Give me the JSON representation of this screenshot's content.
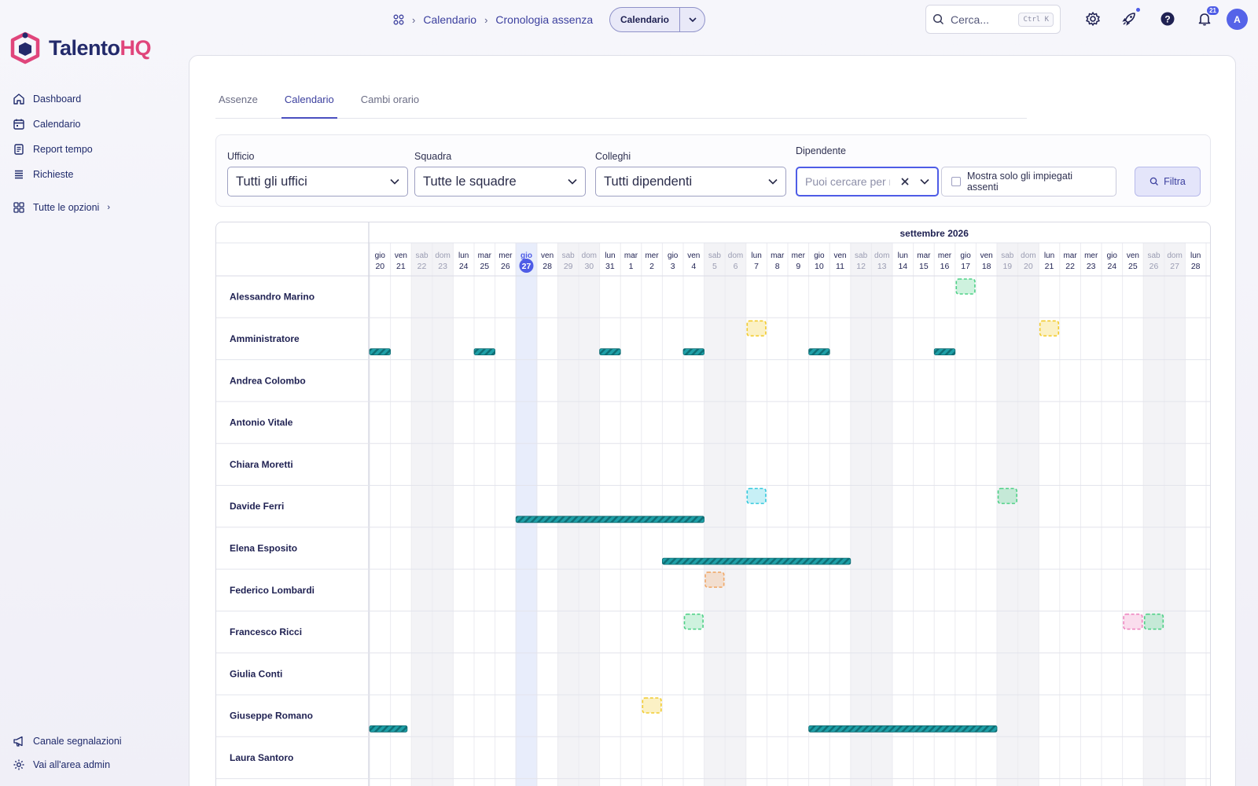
{
  "app": {
    "logo_main": "Talento",
    "logo_accent": "HQ"
  },
  "sidebar": {
    "items": [
      {
        "label": "Dashboard",
        "icon": "home-icon"
      },
      {
        "label": "Calendario",
        "icon": "calendar-icon"
      },
      {
        "label": "Report tempo",
        "icon": "report-icon"
      },
      {
        "label": "Richieste",
        "icon": "list-icon"
      },
      {
        "label": "Tutte le opzioni",
        "icon": "grid-icon"
      }
    ],
    "bottom": [
      {
        "label": "Canale segnalazioni",
        "icon": "megaphone-icon"
      },
      {
        "label": "Vai all'area admin",
        "icon": "gear-icon"
      }
    ]
  },
  "topbar": {
    "breadcrumb": [
      "Calendario",
      "Cronologia assenza"
    ],
    "view_switch": "Calendario",
    "search_placeholder": "Cerca...",
    "search_shortcut": "Ctrl K",
    "notifications_count": "21",
    "avatar_initial": "A"
  },
  "tabs": [
    "Assenze",
    "Calendario",
    "Cambi orario"
  ],
  "active_tab": "Calendario",
  "filters": {
    "office": {
      "label": "Ufficio",
      "value": "Tutti gli uffici"
    },
    "team": {
      "label": "Squadra",
      "value": "Tutte le squadre"
    },
    "colleagues": {
      "label": "Colleghi",
      "value": "Tutti dipendenti"
    },
    "employee": {
      "label": "Dipendente",
      "placeholder": "Puoi cercare per nome"
    },
    "only_absent": "Mostra solo gli impiegati assenti",
    "filter_button": "Filtra"
  },
  "calendar": {
    "month_label": "settembre 2026",
    "today_index": 7,
    "days": [
      {
        "wd": "gio",
        "d": "20"
      },
      {
        "wd": "ven",
        "d": "21"
      },
      {
        "wd": "sab",
        "d": "22",
        "we": true
      },
      {
        "wd": "dom",
        "d": "23",
        "we": true
      },
      {
        "wd": "lun",
        "d": "24"
      },
      {
        "wd": "mar",
        "d": "25"
      },
      {
        "wd": "mer",
        "d": "26"
      },
      {
        "wd": "gio",
        "d": "27"
      },
      {
        "wd": "ven",
        "d": "28"
      },
      {
        "wd": "sab",
        "d": "29",
        "we": true
      },
      {
        "wd": "dom",
        "d": "30",
        "we": true
      },
      {
        "wd": "lun",
        "d": "31"
      },
      {
        "wd": "mar",
        "d": "1"
      },
      {
        "wd": "mer",
        "d": "2"
      },
      {
        "wd": "gio",
        "d": "3"
      },
      {
        "wd": "ven",
        "d": "4"
      },
      {
        "wd": "sab",
        "d": "5",
        "we": true
      },
      {
        "wd": "dom",
        "d": "6",
        "we": true
      },
      {
        "wd": "lun",
        "d": "7"
      },
      {
        "wd": "mar",
        "d": "8"
      },
      {
        "wd": "mer",
        "d": "9"
      },
      {
        "wd": "gio",
        "d": "10"
      },
      {
        "wd": "ven",
        "d": "11"
      },
      {
        "wd": "sab",
        "d": "12",
        "we": true
      },
      {
        "wd": "dom",
        "d": "13",
        "we": true
      },
      {
        "wd": "lun",
        "d": "14"
      },
      {
        "wd": "mar",
        "d": "15"
      },
      {
        "wd": "mer",
        "d": "16"
      },
      {
        "wd": "gio",
        "d": "17"
      },
      {
        "wd": "ven",
        "d": "18"
      },
      {
        "wd": "sab",
        "d": "19",
        "we": true
      },
      {
        "wd": "dom",
        "d": "20",
        "we": true
      },
      {
        "wd": "lun",
        "d": "21"
      },
      {
        "wd": "mar",
        "d": "22"
      },
      {
        "wd": "mer",
        "d": "23"
      },
      {
        "wd": "gio",
        "d": "24"
      },
      {
        "wd": "ven",
        "d": "25"
      },
      {
        "wd": "sab",
        "d": "26",
        "we": true
      },
      {
        "wd": "dom",
        "d": "27",
        "we": true
      },
      {
        "wd": "lun",
        "d": "28"
      }
    ],
    "employees": [
      {
        "name": "Alessandro Marino",
        "events": [
          {
            "type": "box",
            "day": 28,
            "color": "green"
          }
        ]
      },
      {
        "name": "Amministratore",
        "events": [
          {
            "type": "bar",
            "from": -0.2,
            "to": 0,
            "color": "teal"
          },
          {
            "type": "bar",
            "from": 5,
            "to": 5,
            "color": "teal"
          },
          {
            "type": "bar",
            "from": 11,
            "to": 11,
            "color": "teal"
          },
          {
            "type": "bar",
            "from": 15,
            "to": 15,
            "color": "teal"
          },
          {
            "type": "bar",
            "from": 21,
            "to": 21,
            "color": "teal"
          },
          {
            "type": "bar",
            "from": 27,
            "to": 27,
            "color": "teal"
          },
          {
            "type": "box",
            "day": 18,
            "color": "yellow"
          },
          {
            "type": "box",
            "day": 32,
            "color": "yellow"
          }
        ]
      },
      {
        "name": "Andrea Colombo",
        "events": []
      },
      {
        "name": "Antonio Vitale",
        "events": []
      },
      {
        "name": "Chiara Moretti",
        "events": []
      },
      {
        "name": "Davide Ferri",
        "events": [
          {
            "type": "bar",
            "from": 7,
            "to": 15,
            "color": "teal"
          },
          {
            "type": "box",
            "day": 18,
            "color": "cyan"
          },
          {
            "type": "box",
            "day": 30,
            "color": "green"
          }
        ]
      },
      {
        "name": "Elena Esposito",
        "events": [
          {
            "type": "bar",
            "from": 14,
            "to": 22,
            "color": "teal"
          }
        ]
      },
      {
        "name": "Federico Lombardi",
        "events": [
          {
            "type": "box",
            "day": 16,
            "color": "orange"
          }
        ]
      },
      {
        "name": "Francesco Ricci",
        "events": [
          {
            "type": "box",
            "day": 15,
            "color": "green"
          },
          {
            "type": "box",
            "day": 36,
            "color": "pink"
          },
          {
            "type": "box",
            "day": 37,
            "color": "green"
          }
        ]
      },
      {
        "name": "Giulia Conti",
        "events": []
      },
      {
        "name": "Giuseppe Romano",
        "events": [
          {
            "type": "bar",
            "from": -0.2,
            "to": 0.8,
            "color": "teal"
          },
          {
            "type": "bar",
            "from": 21,
            "to": 29,
            "color": "teal"
          },
          {
            "type": "box",
            "day": 13,
            "color": "yellow"
          }
        ]
      },
      {
        "name": "Laura Santoro",
        "events": []
      }
    ]
  },
  "colors": {
    "accent": "#4e5ce6",
    "teal": "#1fa0a8",
    "green": "#4fd187",
    "yellow": "#f2cb2e",
    "cyan": "#35c9dd",
    "orange": "#f0a96a",
    "pink": "#ee86c0"
  }
}
